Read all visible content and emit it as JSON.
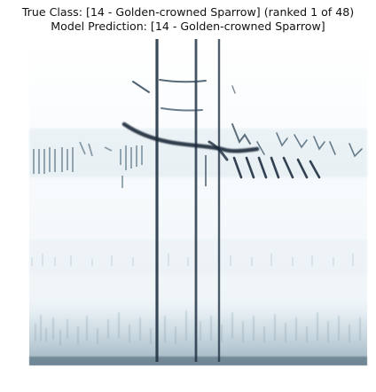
{
  "title": {
    "line1": "True Class: [14 - Golden-crowned Sparrow] (ranked 1 of 48)",
    "line2": "Model Prediction: [14 - Golden-crowned Sparrow]"
  },
  "chart_data": {
    "type": "heatmap",
    "title": "True Class: [14 - Golden-crowned Sparrow] (ranked 1 of 48) / Model Prediction: [14 - Golden-crowned Sparrow]",
    "xlabel": "",
    "ylabel": "",
    "grid": false,
    "axes_visible": false,
    "colors": {
      "background": "#f1f6f8",
      "low": "#dbe8ee",
      "mid": "#8fa8b6",
      "high": "#1e2f40",
      "noise": "#c8d9e1"
    }
  }
}
